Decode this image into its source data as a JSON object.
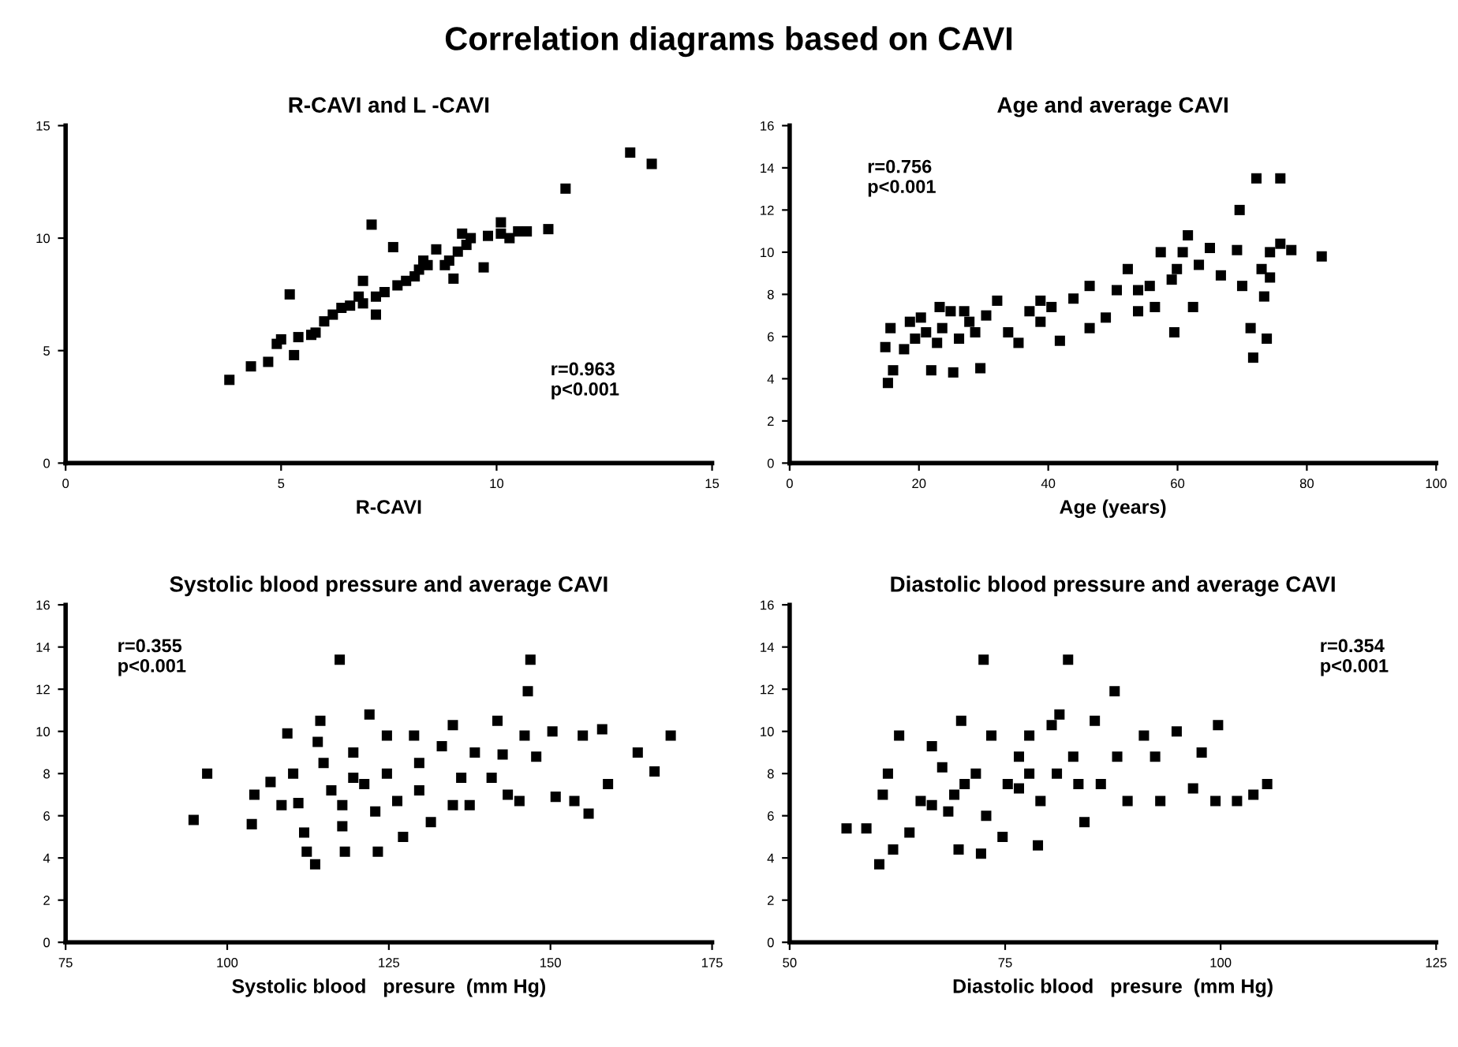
{
  "chart_data": [
    {
      "type": "scatter",
      "title": "R-CAVI and L -CAVI",
      "xlabel": "R-CAVI",
      "marker": "square",
      "grid": false,
      "legend": false,
      "annotations": [
        "Correlation diagrams based on CAVI",
        "r=0.963\np<0.001"
      ],
      "xlim": [
        0,
        15
      ],
      "xticks": [
        0,
        5,
        10,
        15
      ],
      "ylim": [
        0,
        15
      ],
      "yticks": [
        0,
        5,
        10,
        15
      ],
      "series": [
        {
          "color": "#000000",
          "x": [
            3.8,
            4.3,
            4.7,
            4.9,
            5.2,
            5.3,
            5.4,
            5.8,
            6.0,
            6.4,
            6.8,
            7.1,
            7.2,
            7.4,
            7.6,
            7.9,
            8.2,
            8.4,
            8.6,
            8.9,
            9.0,
            9.3,
            9.7,
            9.8,
            10.1,
            10.3,
            10.7,
            11.2,
            11.6,
            13.1,
            13.6,
            5.0,
            5.7,
            6.2,
            6.6,
            6.9,
            7.2,
            7.7,
            8.1,
            8.3,
            8.8,
            9.1,
            9.4,
            9.2,
            10.1,
            10.5,
            6.9
          ],
          "values": [
            3.7,
            4.3,
            4.5,
            5.3,
            7.5,
            4.8,
            5.6,
            5.8,
            6.3,
            6.9,
            7.4,
            10.6,
            6.6,
            7.6,
            9.6,
            8.1,
            8.6,
            8.8,
            9.5,
            9.0,
            8.2,
            9.7,
            8.7,
            10.1,
            10.7,
            10.0,
            10.3,
            10.4,
            12.2,
            13.8,
            13.3,
            5.5,
            5.7,
            6.6,
            7.0,
            7.1,
            7.4,
            7.9,
            8.3,
            9.0,
            8.8,
            9.4,
            10.0,
            10.2,
            10.2,
            10.3,
            8.1
          ]
        }
      ]
    },
    {
      "type": "scatter",
      "title": "Age and average CAVI",
      "xlabel": "Age (years)",
      "marker": "square",
      "grid": false,
      "legend": false,
      "annotations": [
        "r=0.756\np<0.001"
      ],
      "xlim": [
        0,
        100
      ],
      "xticks": [
        0,
        20,
        40,
        60,
        80,
        100
      ],
      "ylim": [
        0,
        16
      ],
      "yticks": [
        0,
        2,
        4,
        6,
        8,
        10,
        12,
        14,
        16
      ],
      "series": [
        {
          "color": "#000000",
          "x": [
            14.8,
            15.2,
            15.6,
            16.0,
            17.7,
            19.4,
            20.3,
            21.9,
            22.8,
            23.6,
            24.9,
            25.3,
            26.2,
            27.8,
            29.5,
            30.4,
            32.1,
            33.8,
            35.4,
            37.1,
            38.8,
            40.5,
            41.8,
            43.9,
            46.4,
            46.4,
            48.9,
            50.6,
            52.3,
            53.9,
            55.7,
            57.4,
            59.1,
            59.5,
            60.8,
            61.6,
            62.4,
            63.3,
            65.0,
            66.7,
            69.2,
            69.6,
            70.0,
            71.3,
            71.7,
            72.2,
            73.0,
            73.4,
            73.8,
            74.3,
            74.3,
            75.9,
            75.9,
            77.6,
            82.3,
            18.6,
            21.1,
            23.2,
            27.0,
            28.7,
            38.8,
            53.9,
            56.5,
            59.9
          ],
          "values": [
            5.5,
            3.8,
            6.4,
            4.4,
            5.4,
            5.9,
            6.9,
            4.4,
            5.7,
            6.4,
            7.2,
            4.3,
            5.9,
            6.7,
            4.5,
            7.0,
            7.7,
            6.2,
            5.7,
            7.2,
            6.7,
            7.4,
            5.8,
            7.8,
            8.4,
            6.4,
            6.9,
            8.2,
            9.2,
            7.2,
            8.4,
            10.0,
            8.7,
            6.2,
            10.0,
            10.8,
            7.4,
            9.4,
            10.2,
            8.9,
            10.1,
            12.0,
            8.4,
            6.4,
            5.0,
            13.5,
            9.2,
            7.9,
            5.9,
            10.0,
            8.8,
            13.5,
            10.4,
            10.1,
            9.8,
            6.7,
            6.2,
            7.4,
            7.2,
            6.2,
            7.7,
            8.2,
            7.4,
            9.2
          ]
        }
      ]
    },
    {
      "type": "scatter",
      "title": "Systolic blood pressure and average CAVI",
      "xlabel": "Systolic blood   presure  (mm Hg)",
      "marker": "square",
      "grid": false,
      "legend": false,
      "annotations": [
        "r=0.355\np<0.001"
      ],
      "xlim": [
        75,
        175
      ],
      "xticks": [
        75,
        100,
        125,
        150,
        175
      ],
      "ylim": [
        0,
        16
      ],
      "yticks": [
        0,
        2,
        4,
        6,
        8,
        10,
        12,
        14,
        16
      ],
      "series": [
        {
          "color": "#000000",
          "x": [
            94.8,
            96.9,
            103.8,
            104.2,
            106.7,
            109.3,
            110.2,
            111.0,
            111.9,
            112.3,
            113.6,
            114.0,
            114.4,
            114.9,
            116.1,
            117.4,
            117.8,
            118.2,
            119.5,
            121.2,
            122.0,
            122.9,
            123.3,
            124.7,
            126.3,
            127.2,
            128.9,
            129.7,
            131.5,
            133.2,
            134.9,
            136.2,
            137.5,
            138.3,
            140.9,
            141.8,
            142.6,
            143.4,
            145.2,
            146.0,
            146.9,
            146.5,
            147.8,
            150.3,
            150.8,
            153.7,
            155.0,
            155.9,
            158.0,
            158.9,
            163.5,
            166.1,
            168.6,
            108.4,
            119.5,
            124.7,
            129.7,
            134.9,
            117.8
          ],
          "values": [
            5.8,
            8.0,
            5.6,
            7.0,
            7.6,
            9.9,
            8.0,
            6.6,
            5.2,
            4.3,
            3.7,
            9.5,
            10.5,
            8.5,
            7.2,
            13.4,
            5.5,
            4.3,
            9.0,
            7.5,
            10.8,
            6.2,
            4.3,
            9.8,
            6.7,
            5.0,
            9.8,
            8.5,
            5.7,
            9.3,
            10.3,
            7.8,
            6.5,
            9.0,
            7.8,
            10.5,
            8.9,
            7.0,
            6.7,
            9.8,
            13.4,
            11.9,
            8.8,
            10.0,
            6.9,
            6.7,
            9.8,
            6.1,
            10.1,
            7.5,
            9.0,
            8.1,
            9.8,
            6.5,
            7.8,
            8.0,
            7.2,
            6.5,
            6.5
          ]
        }
      ]
    },
    {
      "type": "scatter",
      "title": "Diastolic blood pressure and average CAVI",
      "xlabel": "Diastolic blood   presure  (mm Hg)",
      "marker": "square",
      "grid": false,
      "legend": false,
      "annotations": [
        "r=0.354\np<0.001"
      ],
      "xlim": [
        50,
        125
      ],
      "xticks": [
        50,
        75,
        100,
        125
      ],
      "ylim": [
        0,
        16
      ],
      "yticks": [
        0,
        2,
        4,
        6,
        8,
        10,
        12,
        14,
        16
      ],
      "series": [
        {
          "color": "#000000",
          "x": [
            56.6,
            58.9,
            60.4,
            60.8,
            61.4,
            62.0,
            62.7,
            63.9,
            65.2,
            66.5,
            67.7,
            68.4,
            69.6,
            69.9,
            70.3,
            72.2,
            72.5,
            72.8,
            73.4,
            74.7,
            75.3,
            76.6,
            77.8,
            78.8,
            79.1,
            80.4,
            81.0,
            81.3,
            82.3,
            82.9,
            84.2,
            85.4,
            86.1,
            87.7,
            88.0,
            89.2,
            91.1,
            92.4,
            93.0,
            94.9,
            96.8,
            97.8,
            99.4,
            99.7,
            101.9,
            103.8,
            105.4,
            66.5,
            69.1,
            71.6,
            76.6,
            77.8,
            83.5
          ],
          "values": [
            5.4,
            5.4,
            3.7,
            7.0,
            8.0,
            4.4,
            9.8,
            5.2,
            6.7,
            9.3,
            8.3,
            6.2,
            4.4,
            10.5,
            7.5,
            4.2,
            13.4,
            6.0,
            9.8,
            5.0,
            7.5,
            8.8,
            9.8,
            4.6,
            6.7,
            10.3,
            8.0,
            10.8,
            13.4,
            8.8,
            5.7,
            10.5,
            7.5,
            11.9,
            8.8,
            6.7,
            9.8,
            8.8,
            6.7,
            10.0,
            7.3,
            9.0,
            6.7,
            10.3,
            6.7,
            7.0,
            7.5,
            6.5,
            7.0,
            8.0,
            7.3,
            8.0,
            7.5
          ]
        }
      ]
    }
  ]
}
